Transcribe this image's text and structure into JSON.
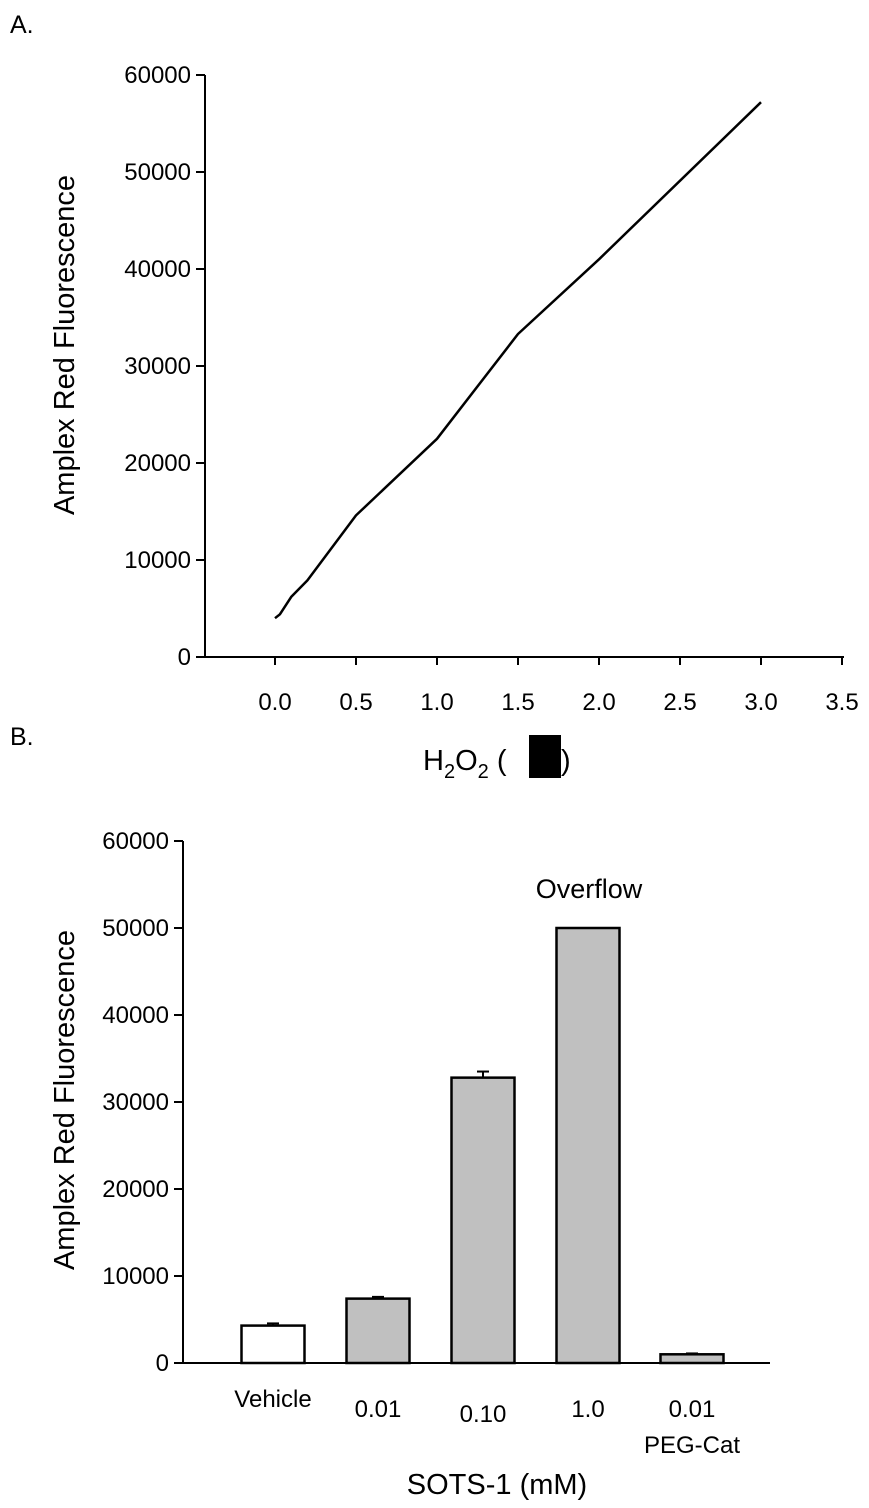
{
  "panels": {
    "a": {
      "label": "A."
    },
    "b": {
      "label": "B."
    }
  },
  "redaction_color": "#000000",
  "chart_data": [
    {
      "type": "line",
      "ylabel": "Amplex Red Fluorescence",
      "xlabel": {
        "h": "H",
        "sub1": "2",
        "o": "O",
        "sub2": "2",
        "open": " (",
        "close": ")"
      },
      "xlim": [
        -0.45,
        3.5
      ],
      "ylim": [
        0,
        60000
      ],
      "xticks": [
        0.0,
        0.5,
        1.0,
        1.5,
        2.0,
        2.5,
        3.0,
        3.5
      ],
      "xtick_labels": [
        "0.0",
        "0.5",
        "1.0",
        "1.5",
        "2.0",
        "2.5",
        "3.0",
        "3.5"
      ],
      "yticks": [
        0,
        10000,
        20000,
        30000,
        40000,
        50000,
        60000
      ],
      "ytick_labels": [
        "0",
        "10000",
        "20000",
        "30000",
        "40000",
        "50000",
        "60000"
      ],
      "line_color": "#000000",
      "series": [
        {
          "x": [
            0.0,
            0.03,
            0.1,
            0.2,
            0.5,
            1.0,
            1.5,
            2.0,
            3.0
          ],
          "y": [
            4000,
            4400,
            6200,
            7900,
            14600,
            22500,
            33300,
            41000,
            57200
          ]
        }
      ]
    },
    {
      "type": "bar",
      "ylabel": "Amplex Red Fluorescence",
      "xlabel": "SOTS-1 (mM)",
      "ylim": [
        0,
        60000
      ],
      "yticks": [
        0,
        10000,
        20000,
        30000,
        40000,
        50000,
        60000
      ],
      "ytick_labels": [
        "0",
        "10000",
        "20000",
        "30000",
        "40000",
        "50000",
        "60000"
      ],
      "categories": [
        "Vehicle",
        "0.01",
        "0.10",
        "1.0",
        "0.01"
      ],
      "category_sublabels": [
        "",
        "",
        "",
        "",
        "PEG-Cat"
      ],
      "values": [
        4300,
        7400,
        32800,
        50000,
        1000
      ],
      "errors": [
        250,
        200,
        700,
        0,
        100
      ],
      "bar_colors": [
        "#ffffff",
        "#c0c0c0",
        "#c0c0c0",
        "#c0c0c0",
        "#c0c0c0"
      ],
      "annotations": [
        {
          "category_index": 3,
          "text": "Overflow"
        }
      ]
    }
  ]
}
